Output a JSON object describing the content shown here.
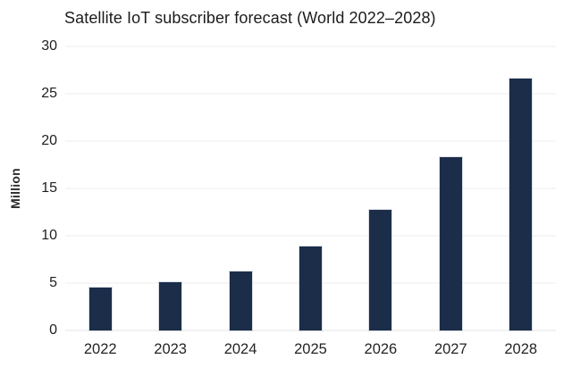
{
  "chart_data": {
    "type": "bar",
    "title": "Satellite IoT subscriber forecast (World 2022–2028)",
    "ylabel": "Million",
    "xlabel": "",
    "categories": [
      "2022",
      "2023",
      "2024",
      "2025",
      "2026",
      "2027",
      "2028"
    ],
    "values": [
      4.5,
      5.1,
      6.2,
      8.9,
      12.7,
      18.3,
      26.6
    ],
    "ylim": [
      0,
      30
    ],
    "yticks": [
      0,
      5,
      10,
      15,
      20,
      25,
      30
    ],
    "grid": "horizontal",
    "legend": "none"
  },
  "colors": {
    "bar": "#1b2d48",
    "gridline": "#ededed",
    "background": "#ffffff",
    "text": "#1c1c1c"
  }
}
